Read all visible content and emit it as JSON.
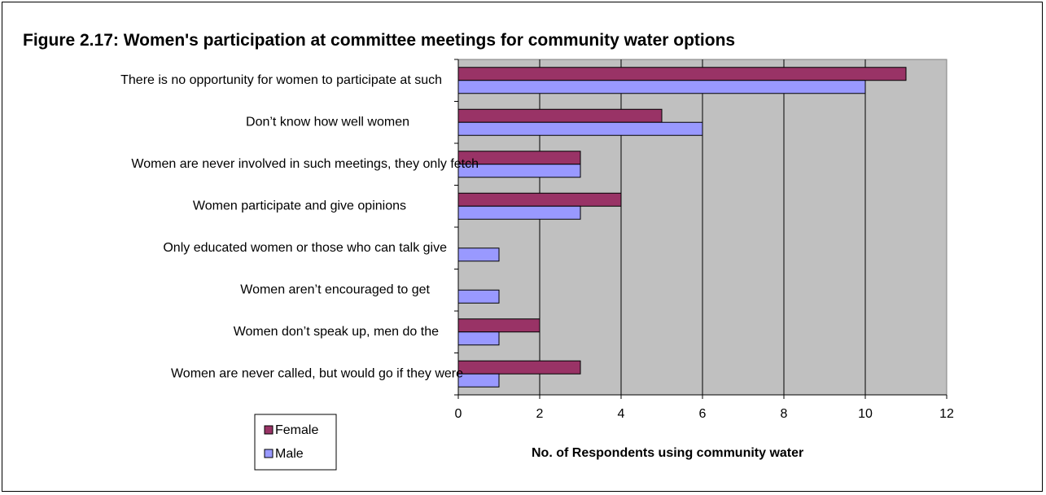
{
  "chart_data": {
    "type": "bar",
    "orientation": "horizontal",
    "title": "Figure 2.17: Women's participation at committee meetings for community water options",
    "xlabel": "No. of Respondents using community water",
    "ylabel": "",
    "xlim": [
      0,
      12
    ],
    "x_ticks": [
      "0",
      "2",
      "4",
      "6",
      "8",
      "10",
      "12"
    ],
    "grid": "vertical",
    "legend_position": "bottom-left",
    "categories": [
      "There is no opportunity for women to participate at such",
      "Don’t know how well women",
      "Women are never involved in such meetings, they only fetch",
      "Women participate and give opinions",
      "Only educated women or those who can talk give",
      "Women aren’t encouraged to get",
      "Women don’t speak up, men do the",
      "Women are never called, but would go if they were"
    ],
    "series": [
      {
        "name": "Female",
        "color": "#993366",
        "values": [
          11,
          5,
          3,
          4,
          0,
          0,
          2,
          3
        ]
      },
      {
        "name": "Male",
        "color": "#9999ff",
        "values": [
          10,
          6,
          3,
          3,
          1,
          1,
          1,
          1
        ]
      }
    ],
    "plot_background": "#c0c0c0"
  }
}
